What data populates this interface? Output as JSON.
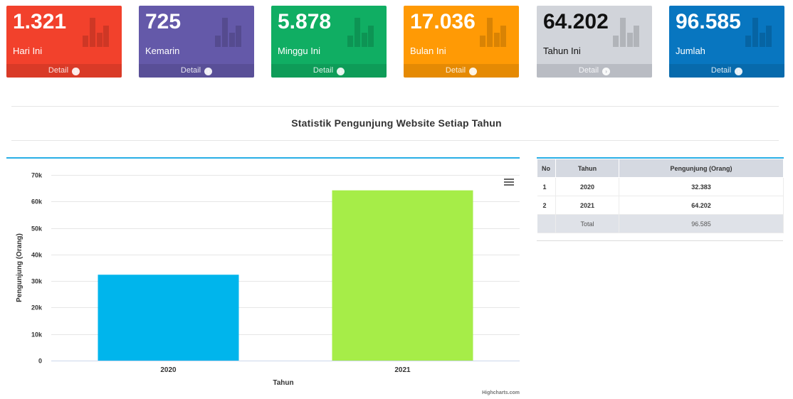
{
  "stats": [
    {
      "value": "1.321",
      "label": "Hari Ini",
      "footer": "Detail",
      "color": "#f2412c"
    },
    {
      "value": "725",
      "label": "Kemarin",
      "footer": "Detail",
      "color": "#6459a9"
    },
    {
      "value": "5.878",
      "label": "Minggu Ini",
      "footer": "Detail",
      "color": "#10ae63"
    },
    {
      "value": "17.036",
      "label": "Bulan Ini",
      "footer": "Detail",
      "color": "#ff9a05"
    },
    {
      "value": "64.202",
      "label": "Tahun Ini",
      "footer": "Detail",
      "color": "#d1d4da"
    },
    {
      "value": "96.585",
      "label": "Jumlah",
      "footer": "Detail",
      "color": "#0876c0"
    }
  ],
  "icons": {
    "stat": "bar-chart-icon",
    "detail": "arrow-circle-right-icon",
    "chart_menu": "hamburger-menu-icon"
  },
  "section": {
    "title": "Statistik Pengunjung Website Setiap Tahun"
  },
  "chart_data": {
    "type": "bar",
    "categories": [
      "2020",
      "2021"
    ],
    "values": [
      32383,
      64202
    ],
    "colors": [
      "#00b5ec",
      "#a6ed48"
    ],
    "xlabel": "Tahun",
    "ylabel": "Pengunjung (Orang)",
    "ylim": [
      0,
      70000
    ],
    "yticks": [
      0,
      10000,
      20000,
      30000,
      40000,
      50000,
      60000,
      70000
    ],
    "ytick_labels": [
      "0",
      "10k",
      "20k",
      "30k",
      "40k",
      "50k",
      "60k",
      "70k"
    ],
    "grid": true,
    "legend": "none",
    "credits": "Highcharts.com"
  },
  "table": {
    "headers": [
      "No",
      "Tahun",
      "Pengunjung (Orang)"
    ],
    "rows": [
      {
        "no": "1",
        "tahun": "2020",
        "pengunjung": "32.383"
      },
      {
        "no": "2",
        "tahun": "2021",
        "pengunjung": "64.202"
      }
    ],
    "total_label": "Total",
    "total_value": "96.585"
  }
}
